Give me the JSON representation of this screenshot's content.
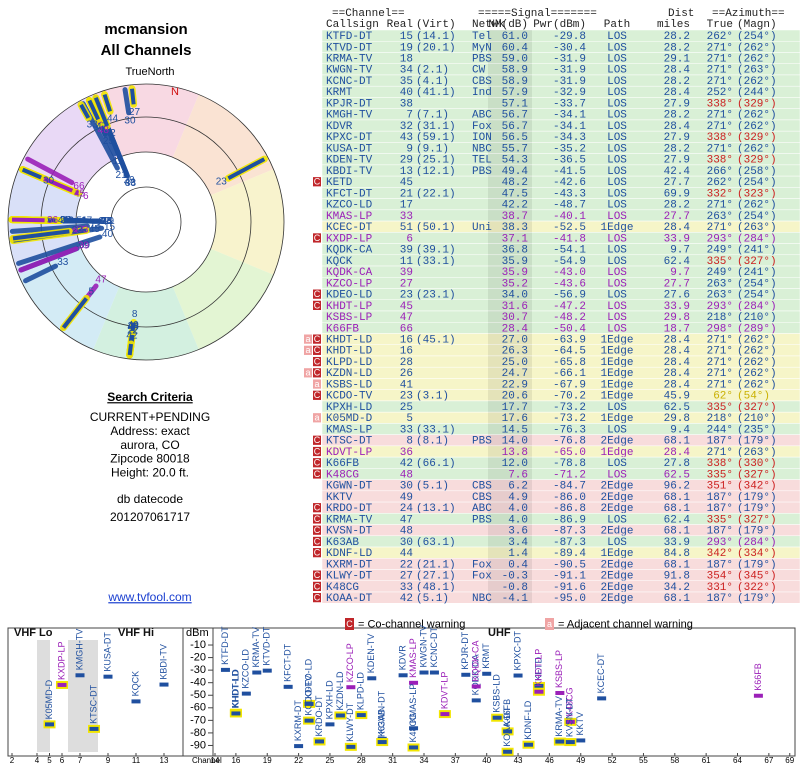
{
  "left": {
    "title": "mcmansion",
    "subtitle": "All Channels",
    "north_label": "TrueNorth",
    "north_marker": "N",
    "criteria_title": "Search Criteria",
    "criteria": [
      "CURRENT+PENDING",
      "Address: exact",
      "aurora, CO",
      "Zipcode 80018",
      "Height: 20.0 ft."
    ],
    "datecode_label": "db datecode",
    "datecode": "201207061717",
    "link": "www.tvfool.com"
  },
  "table": {
    "group_headers": [
      "==Channel==",
      "=====Signal=======",
      "Dist",
      "==Azimuth=="
    ],
    "headers": [
      "Callsign",
      "Real",
      "(Virt)",
      "Netwk",
      "NM(dB)",
      "Pwr(dBm)",
      "Path",
      "miles",
      "True",
      "(Magn)"
    ],
    "rows": [
      {
        "c": "KTFD-DT",
        "r": "15",
        "v": "(14.1)",
        "n": "Tel",
        "nm": "61.0",
        "p": "-29.8",
        "path": "LOS",
        "d": "28.2",
        "t": "262°",
        "m": "(254°)",
        "color": "#1f4f9f",
        "tc": "#1f4f9f"
      },
      {
        "c": "KTVD-DT",
        "r": "19",
        "v": "(20.1)",
        "n": "MyN",
        "nm": "60.4",
        "p": "-30.4",
        "path": "LOS",
        "d": "28.2",
        "t": "271°",
        "m": "(262°)",
        "color": "#1f4f9f",
        "tc": "#1f4f9f"
      },
      {
        "c": "KRMA-TV",
        "r": "18",
        "n": "PBS",
        "nm": "59.0",
        "p": "-31.9",
        "path": "LOS",
        "d": "29.1",
        "t": "271°",
        "m": "(262°)",
        "color": "#1f4f9f",
        "tc": "#1f4f9f"
      },
      {
        "c": "KWGN-TV",
        "r": "34",
        "v": "(2.1)",
        "n": "CW",
        "nm": "58.9",
        "p": "-31.9",
        "path": "LOS",
        "d": "28.4",
        "t": "271°",
        "m": "(263°)",
        "color": "#1f4f9f",
        "tc": "#1f4f9f"
      },
      {
        "c": "KCNC-DT",
        "r": "35",
        "v": "(4.1)",
        "n": "CBS",
        "nm": "58.9",
        "p": "-31.9",
        "path": "LOS",
        "d": "28.2",
        "t": "271°",
        "m": "(262°)",
        "color": "#1f4f9f",
        "tc": "#1f4f9f"
      },
      {
        "c": "KRMT",
        "r": "40",
        "v": "(41.1)",
        "n": "Ind",
        "nm": "57.9",
        "p": "-32.9",
        "path": "LOS",
        "d": "28.4",
        "t": "252°",
        "m": "(244°)",
        "color": "#1f4f9f",
        "tc": "#1f4f9f"
      },
      {
        "c": "KPJR-DT",
        "r": "38",
        "nm": "57.1",
        "p": "-33.7",
        "path": "LOS",
        "d": "27.9",
        "t": "338°",
        "m": "(329°)",
        "color": "#1f4f9f",
        "tc": "#cc2020"
      },
      {
        "c": "KMGH-TV",
        "r": "7",
        "v": "(7.1)",
        "n": "ABC",
        "nm": "56.7",
        "p": "-34.1",
        "path": "LOS",
        "d": "28.2",
        "t": "271°",
        "m": "(262°)",
        "color": "#1f4f9f",
        "tc": "#1f4f9f"
      },
      {
        "c": "KDVR",
        "r": "32",
        "v": "(31.1)",
        "n": "Fox",
        "nm": "56.7",
        "p": "-34.1",
        "path": "LOS",
        "d": "28.4",
        "t": "271°",
        "m": "(262°)",
        "color": "#1f4f9f",
        "tc": "#1f4f9f"
      },
      {
        "c": "KPXC-DT",
        "r": "43",
        "v": "(59.1)",
        "n": "ION",
        "nm": "56.5",
        "p": "-34.3",
        "path": "LOS",
        "d": "27.9",
        "t": "338°",
        "m": "(329°)",
        "color": "#1f4f9f",
        "tc": "#cc2020"
      },
      {
        "c": "KUSA-DT",
        "r": "9",
        "v": "(9.1)",
        "n": "NBC",
        "nm": "55.7",
        "p": "-35.2",
        "path": "LOS",
        "d": "28.2",
        "t": "271°",
        "m": "(262°)",
        "color": "#1f4f9f",
        "tc": "#1f4f9f"
      },
      {
        "c": "KDEN-TV",
        "r": "29",
        "v": "(25.1)",
        "n": "TEL",
        "nm": "54.3",
        "p": "-36.5",
        "path": "LOS",
        "d": "27.9",
        "t": "338°",
        "m": "(329°)",
        "color": "#1f4f9f",
        "tc": "#cc2020"
      },
      {
        "c": "KBDI-TV",
        "r": "13",
        "v": "(12.1)",
        "n": "PBS",
        "nm": "49.4",
        "p": "-41.5",
        "path": "LOS",
        "d": "42.4",
        "t": "266°",
        "m": "(258°)",
        "color": "#1f4f9f",
        "tc": "#1f4f9f"
      },
      {
        "c": "KETD",
        "r": "45",
        "nm": "48.2",
        "p": "-42.6",
        "path": "LOS",
        "d": "27.7",
        "t": "262°",
        "m": "(254°)",
        "color": "#1f4f9f",
        "tc": "#1f4f9f",
        "w": [
          "C"
        ]
      },
      {
        "c": "KFCT-DT",
        "r": "21",
        "v": "(22.1)",
        "nm": "47.5",
        "p": "-43.3",
        "path": "LOS",
        "d": "69.9",
        "t": "332°",
        "m": "(323°)",
        "color": "#1f4f9f",
        "tc": "#cc2020"
      },
      {
        "c": "KZCO-LD",
        "r": "17",
        "nm": "42.2",
        "p": "-48.7",
        "path": "LOS",
        "d": "28.2",
        "t": "271°",
        "m": "(262°)",
        "color": "#1f4f9f",
        "tc": "#1f4f9f"
      },
      {
        "c": "KMAS-LP",
        "r": "33",
        "nm": "38.7",
        "p": "-40.1",
        "path": "LOS",
        "d": "27.7",
        "t": "263°",
        "m": "(254°)",
        "color": "#9b20b8",
        "tc": "#1f4f9f"
      },
      {
        "c": "KCEC-DT",
        "r": "51",
        "v": "(50.1)",
        "n": "Uni",
        "nm": "38.3",
        "p": "-52.5",
        "path": "1Edge",
        "d": "28.4",
        "t": "271°",
        "m": "(263°)",
        "color": "#1f4f9f",
        "tc": "#1f4f9f"
      },
      {
        "c": "KXDP-LP",
        "r": "6",
        "nm": "37.1",
        "p": "-41.8",
        "path": "LOS",
        "d": "33.9",
        "t": "293°",
        "m": "(284°)",
        "color": "#9b20b8",
        "tc": "#9b20b8",
        "w": [
          "C"
        ]
      },
      {
        "c": "KQDK-CA",
        "r": "39",
        "v": "(39.1)",
        "nm": "36.8",
        "p": "-54.1",
        "path": "LOS",
        "d": "9.7",
        "t": "249°",
        "m": "(241°)",
        "color": "#1f4f9f",
        "tc": "#1f4f9f"
      },
      {
        "c": "KQCK",
        "r": "11",
        "v": "(33.1)",
        "nm": "35.9",
        "p": "-54.9",
        "path": "LOS",
        "d": "62.4",
        "t": "335°",
        "m": "(327°)",
        "color": "#1f4f9f",
        "tc": "#cc2020"
      },
      {
        "c": "KQDK-CA",
        "r": "39",
        "nm": "35.9",
        "p": "-43.0",
        "path": "LOS",
        "d": "9.7",
        "t": "249°",
        "m": "(241°)",
        "color": "#9b20b8",
        "tc": "#1f4f9f"
      },
      {
        "c": "KZCO-LP",
        "r": "27",
        "nm": "35.2",
        "p": "-43.6",
        "path": "LOS",
        "d": "27.7",
        "t": "263°",
        "m": "(254°)",
        "color": "#9b20b8",
        "tc": "#1f4f9f"
      },
      {
        "c": "KDEO-LD",
        "r": "23",
        "v": "(23.1)",
        "nm": "34.0",
        "p": "-56.9",
        "path": "LOS",
        "d": "27.6",
        "t": "263°",
        "m": "(254°)",
        "color": "#1f4f9f",
        "tc": "#1f4f9f",
        "w": [
          "C"
        ]
      },
      {
        "c": "KHDT-LP",
        "r": "45",
        "nm": "31.6",
        "p": "-47.2",
        "path": "LOS",
        "d": "33.9",
        "t": "293°",
        "m": "(284°)",
        "color": "#9b20b8",
        "tc": "#9b20b8",
        "w": [
          "C"
        ]
      },
      {
        "c": "KSBS-LP",
        "r": "47",
        "nm": "30.7",
        "p": "-48.2",
        "path": "LOS",
        "d": "29.8",
        "t": "218°",
        "m": "(210°)",
        "color": "#9b20b8",
        "tc": "#1f4f9f"
      },
      {
        "c": "K66FB",
        "r": "66",
        "nm": "28.4",
        "p": "-50.4",
        "path": "LOS",
        "d": "18.7",
        "t": "298°",
        "m": "(289°)",
        "color": "#9b20b8",
        "tc": "#9b20b8"
      },
      {
        "c": "KHDT-LD",
        "r": "16",
        "v": "(45.1)",
        "nm": "27.0",
        "p": "-63.9",
        "path": "1Edge",
        "d": "28.4",
        "t": "271°",
        "m": "(262°)",
        "color": "#1f4f9f",
        "tc": "#1f4f9f",
        "w": [
          "a",
          "C"
        ]
      },
      {
        "c": "KHDT-LD",
        "r": "16",
        "nm": "26.3",
        "p": "-64.5",
        "path": "1Edge",
        "d": "28.4",
        "t": "271°",
        "m": "(262°)",
        "color": "#1f4f9f",
        "tc": "#1f4f9f",
        "w": [
          "a",
          "C"
        ]
      },
      {
        "c": "KLPD-LD",
        "r": "28",
        "nm": "25.0",
        "p": "-65.8",
        "path": "1Edge",
        "d": "28.4",
        "t": "271°",
        "m": "(262°)",
        "color": "#1f4f9f",
        "tc": "#1f4f9f",
        "w": [
          "C"
        ]
      },
      {
        "c": "KZDN-LD",
        "r": "26",
        "nm": "24.7",
        "p": "-66.1",
        "path": "1Edge",
        "d": "28.4",
        "t": "271°",
        "m": "(262°)",
        "color": "#1f4f9f",
        "tc": "#1f4f9f",
        "w": [
          "a",
          "C"
        ]
      },
      {
        "c": "KSBS-LD",
        "r": "41",
        "nm": "22.9",
        "p": "-67.9",
        "path": "1Edge",
        "d": "28.4",
        "t": "271°",
        "m": "(262°)",
        "color": "#1f4f9f",
        "tc": "#1f4f9f",
        "w": [
          "a"
        ]
      },
      {
        "c": "KCDO-TV",
        "r": "23",
        "v": "(3.1)",
        "nm": "20.6",
        "p": "-70.2",
        "path": "1Edge",
        "d": "45.9",
        "t": "62°",
        "m": "(54°)",
        "color": "#1f4f9f",
        "tc": "#c9b000",
        "w": [
          "C"
        ]
      },
      {
        "c": "KPXH-LD",
        "r": "25",
        "nm": "17.7",
        "p": "-73.2",
        "path": "LOS",
        "d": "62.5",
        "t": "335°",
        "m": "(327°)",
        "color": "#1f4f9f",
        "tc": "#cc2020"
      },
      {
        "c": "K05MD-D",
        "r": "5",
        "nm": "17.6",
        "p": "-73.2",
        "path": "1Edge",
        "d": "29.8",
        "t": "218°",
        "m": "(210°)",
        "color": "#1f4f9f",
        "tc": "#1f4f9f",
        "w": [
          "a"
        ]
      },
      {
        "c": "KMAS-LP",
        "r": "33",
        "v": "(33.1)",
        "nm": "14.5",
        "p": "-76.3",
        "path": "LOS",
        "d": "9.4",
        "t": "244°",
        "m": "(235°)",
        "color": "#1f4f9f",
        "tc": "#1f4f9f"
      },
      {
        "c": "KTSC-DT",
        "r": "8",
        "v": "(8.1)",
        "n": "PBS",
        "nm": "14.0",
        "p": "-76.8",
        "path": "2Edge",
        "d": "68.1",
        "t": "187°",
        "m": "(179°)",
        "color": "#1f4f9f",
        "tc": "#1f4f9f",
        "w": [
          "C"
        ]
      },
      {
        "c": "KDVT-LP",
        "r": "36",
        "nm": "13.8",
        "p": "-65.0",
        "path": "1Edge",
        "d": "28.4",
        "t": "271°",
        "m": "(263°)",
        "color": "#9b20b8",
        "tc": "#1f4f9f",
        "w": [
          "C"
        ]
      },
      {
        "c": "K66FB",
        "r": "42",
        "v": "(66.1)",
        "nm": "12.0",
        "p": "-78.8",
        "path": "LOS",
        "d": "27.8",
        "t": "338°",
        "m": "(330°)",
        "color": "#1f4f9f",
        "tc": "#cc2020",
        "w": [
          "C"
        ]
      },
      {
        "c": "K48CG",
        "r": "48",
        "nm": "7.6",
        "p": "-71.2",
        "path": "LOS",
        "d": "62.5",
        "t": "335°",
        "m": "(327°)",
        "color": "#9b20b8",
        "tc": "#cc2020",
        "w": [
          "C"
        ]
      },
      {
        "c": "KGWN-DT",
        "r": "30",
        "v": "(5.1)",
        "n": "CBS",
        "nm": "6.2",
        "p": "-84.7",
        "path": "2Edge",
        "d": "96.2",
        "t": "351°",
        "m": "(342°)",
        "color": "#1f4f9f",
        "tc": "#cc2020"
      },
      {
        "c": "KKTV",
        "r": "49",
        "n": "CBS",
        "nm": "4.9",
        "p": "-86.0",
        "path": "2Edge",
        "d": "68.1",
        "t": "187°",
        "m": "(179°)",
        "color": "#1f4f9f",
        "tc": "#1f4f9f"
      },
      {
        "c": "KRDO-DT",
        "r": "24",
        "v": "(13.1)",
        "n": "ABC",
        "nm": "4.0",
        "p": "-86.8",
        "path": "2Edge",
        "d": "68.1",
        "t": "187°",
        "m": "(179°)",
        "color": "#1f4f9f",
        "tc": "#1f4f9f",
        "w": [
          "C"
        ]
      },
      {
        "c": "KRMA-TV",
        "r": "47",
        "n": "PBS",
        "nm": "4.0",
        "p": "-86.9",
        "path": "LOS",
        "d": "62.4",
        "t": "335°",
        "m": "(327°)",
        "color": "#1f4f9f",
        "tc": "#cc2020",
        "w": [
          "C"
        ]
      },
      {
        "c": "KVSN-DT",
        "r": "48",
        "nm": "3.6",
        "p": "-87.3",
        "path": "2Edge",
        "d": "68.1",
        "t": "187°",
        "m": "(179°)",
        "color": "#1f4f9f",
        "tc": "#1f4f9f",
        "w": [
          "C"
        ]
      },
      {
        "c": "K63AB",
        "r": "30",
        "v": "(63.1)",
        "nm": "3.4",
        "p": "-87.3",
        "path": "LOS",
        "d": "33.9",
        "t": "293°",
        "m": "(284°)",
        "color": "#1f4f9f",
        "tc": "#9b20b8",
        "w": [
          "C"
        ]
      },
      {
        "c": "KDNF-LD",
        "r": "44",
        "nm": "1.4",
        "p": "-89.4",
        "path": "1Edge",
        "d": "84.8",
        "t": "342°",
        "m": "(334°)",
        "color": "#1f4f9f",
        "tc": "#cc2020",
        "w": [
          "C"
        ]
      },
      {
        "c": "KXRM-DT",
        "r": "22",
        "v": "(21.1)",
        "n": "Fox",
        "nm": "0.4",
        "p": "-90.5",
        "path": "2Edge",
        "d": "68.1",
        "t": "187°",
        "m": "(179°)",
        "color": "#1f4f9f",
        "tc": "#1f4f9f"
      },
      {
        "c": "KLWY-DT",
        "r": "27",
        "v": "(27.1)",
        "n": "Fox",
        "nm": "-0.3",
        "p": "-91.1",
        "path": "2Edge",
        "d": "91.8",
        "t": "354°",
        "m": "(345°)",
        "color": "#1f4f9f",
        "tc": "#cc2020",
        "w": [
          "C"
        ]
      },
      {
        "c": "K48CG",
        "r": "33",
        "v": "(48.1)",
        "nm": "-0.8",
        "p": "-91.6",
        "path": "2Edge",
        "d": "34.2",
        "t": "331°",
        "m": "(322°)",
        "color": "#1f4f9f",
        "tc": "#cc2020",
        "w": [
          "C"
        ]
      },
      {
        "c": "KOAA-DT",
        "r": "42",
        "v": "(5.1)",
        "n": "NBC",
        "nm": "-4.1",
        "p": "-95.0",
        "path": "2Edge",
        "d": "68.1",
        "t": "187°",
        "m": "(179°)",
        "color": "#1f4f9f",
        "tc": "#1f4f9f",
        "w": [
          "C"
        ]
      }
    ]
  },
  "spectrum": {
    "bands": [
      "VHF Lo",
      "VHF Hi",
      "UHF"
    ],
    "y_label": "dBm",
    "x_label": "Channel",
    "ylim": [
      -6,
      -96
    ],
    "yticks": [
      -10,
      -20,
      -30,
      -40,
      -50,
      -60,
      -70,
      -80,
      -90
    ],
    "xticks": [
      2,
      4,
      5,
      6,
      7,
      9,
      11,
      13,
      14,
      16,
      19,
      22,
      25,
      28,
      31,
      34,
      37,
      40,
      43,
      46,
      49,
      52,
      55,
      58,
      61,
      64,
      67,
      69
    ],
    "legend": [
      {
        "icon": "C",
        "text": "= Co-channel warning"
      },
      {
        "icon": "a",
        "text": "= Adjacent channel warning"
      }
    ]
  }
}
